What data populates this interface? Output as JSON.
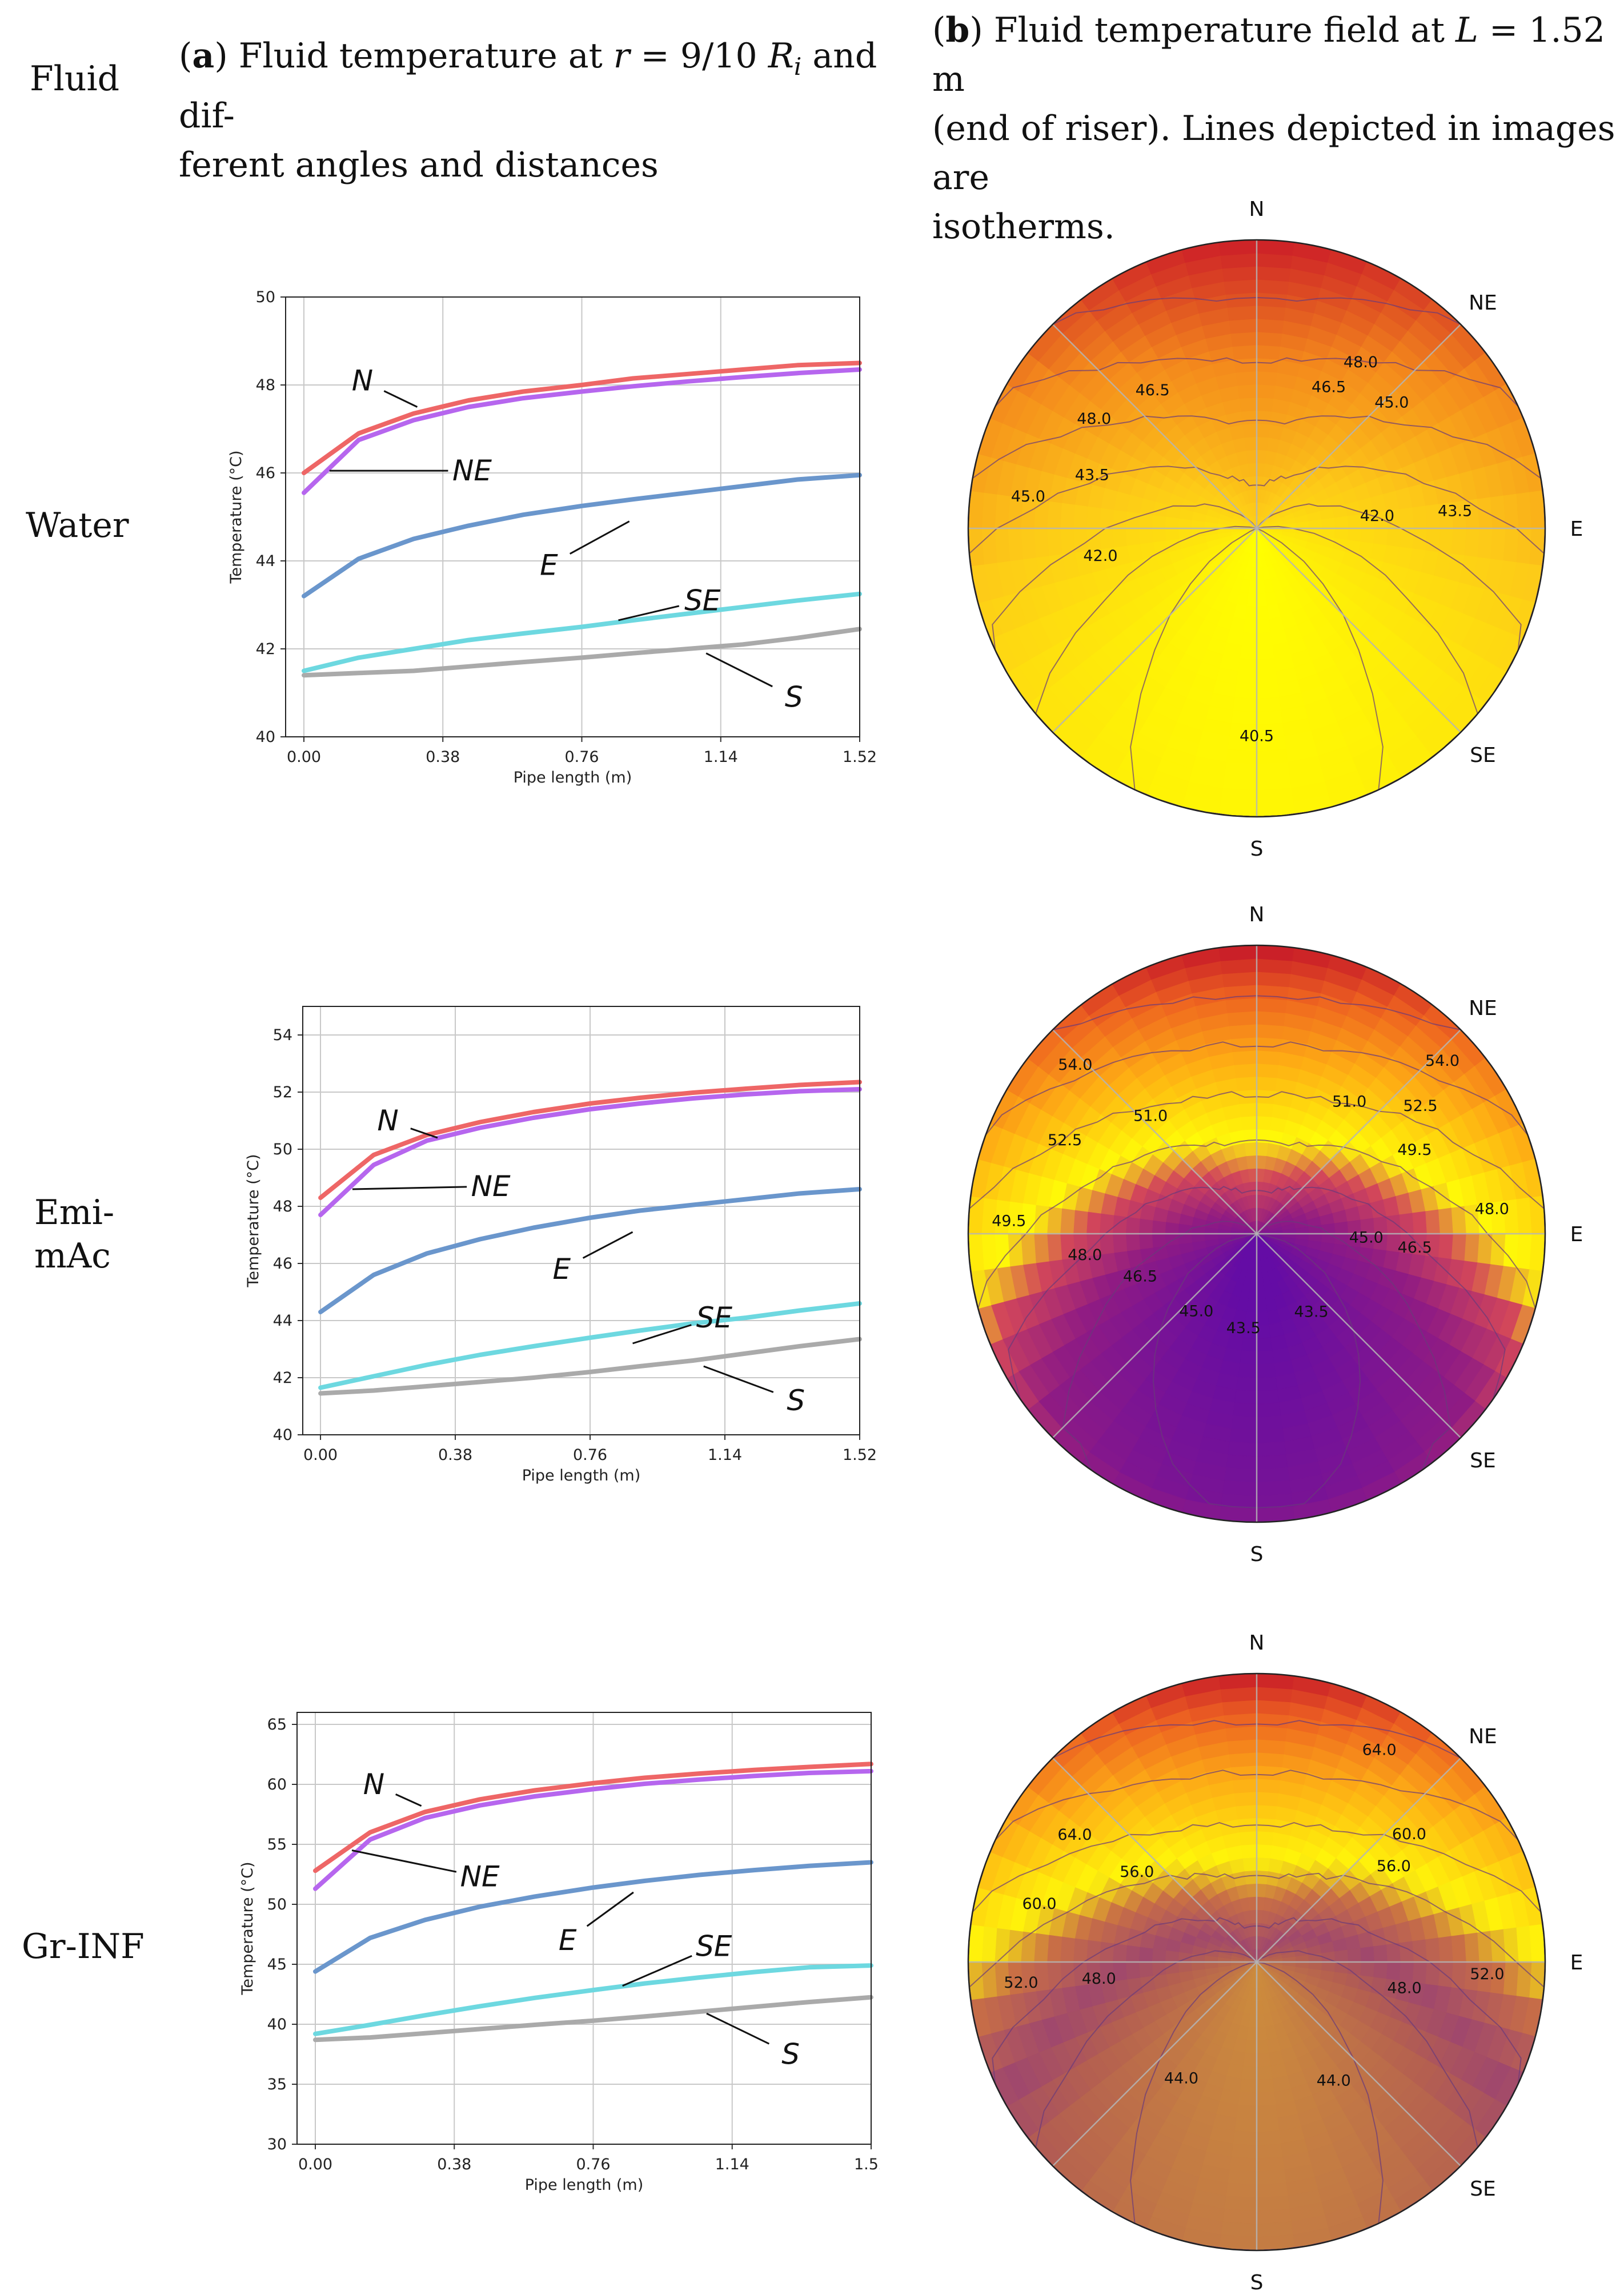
{
  "header": {
    "fluid_label": "Fluid",
    "col_a": {
      "tag": "a",
      "text_1": "Fluid temperature at ",
      "r_var": "r",
      "text_2": " = 9/10 ",
      "R_var": "R",
      "R_sub": "i",
      "text_3": " and dif-",
      "text_line2": "ferent angles and distances"
    },
    "col_b": {
      "tag": "b",
      "text_1": "Fluid temperature field at ",
      "L_var": "L",
      "text_2": " = 1.52 m",
      "text_line2": "(end of riser). Lines depicted in images are",
      "text_line3": "isotherms."
    }
  },
  "rows": [
    {
      "label_lines": [
        "Water"
      ]
    },
    {
      "label_lines": [
        "Emi-",
        "mAc"
      ]
    },
    {
      "label_lines": [
        "Gr-INF"
      ]
    }
  ],
  "chart_data": [
    {
      "type": "line",
      "panel": "water",
      "xlabel": "Pipe length (m)",
      "ylabel": "Temperature (°C)",
      "xlim": [
        -0.05,
        1.52
      ],
      "ylim": [
        40,
        50
      ],
      "x_ticks": [
        0.0,
        0.38,
        0.76,
        1.14,
        1.52
      ],
      "x_tick_labels": [
        "0.00",
        "0.38",
        "0.76",
        "1.14",
        "1.52"
      ],
      "y_ticks": [
        40,
        42,
        44,
        46,
        48,
        50
      ],
      "grid": true,
      "x": [
        0.0,
        0.15,
        0.3,
        0.45,
        0.6,
        0.76,
        0.9,
        1.05,
        1.2,
        1.35,
        1.52
      ],
      "series": [
        {
          "name": "N",
          "color": "#ee6666",
          "values": [
            46.0,
            46.9,
            47.35,
            47.65,
            47.85,
            48.0,
            48.15,
            48.25,
            48.35,
            48.45,
            48.5
          ]
        },
        {
          "name": "NE",
          "color": "#b666ee",
          "values": [
            45.55,
            46.75,
            47.2,
            47.5,
            47.7,
            47.85,
            47.97,
            48.08,
            48.18,
            48.27,
            48.35
          ]
        },
        {
          "name": "E",
          "color": "#6a96cc",
          "values": [
            43.2,
            44.05,
            44.5,
            44.8,
            45.05,
            45.25,
            45.4,
            45.55,
            45.7,
            45.85,
            45.95
          ]
        },
        {
          "name": "SE",
          "color": "#6dd8e0",
          "values": [
            41.5,
            41.8,
            42.0,
            42.2,
            42.35,
            42.5,
            42.65,
            42.8,
            42.95,
            43.1,
            43.25
          ]
        },
        {
          "name": "S",
          "color": "#aaaaaa",
          "values": [
            41.4,
            41.45,
            41.5,
            41.6,
            41.7,
            41.8,
            41.9,
            42.0,
            42.1,
            42.25,
            42.45
          ]
        }
      ],
      "annotations": [
        {
          "text": "N",
          "x": 0.16,
          "y": 48.1,
          "tx": 0.31,
          "ty": 47.5
        },
        {
          "text": "NE",
          "x": 0.46,
          "y": 46.05,
          "tx": 0.07,
          "ty": 46.05
        },
        {
          "text": "E",
          "x": 0.67,
          "y": 43.9,
          "tx": 0.89,
          "ty": 44.9
        },
        {
          "text": "SE",
          "x": 1.09,
          "y": 43.1,
          "tx": 0.86,
          "ty": 42.65
        },
        {
          "text": "S",
          "x": 1.34,
          "y": 40.9,
          "tx": 1.1,
          "ty": 41.9
        }
      ]
    },
    {
      "type": "line",
      "panel": "emimac",
      "xlabel": "Pipe length (m)",
      "ylabel": "Temperature (°C)",
      "xlim": [
        -0.05,
        1.52
      ],
      "ylim": [
        40,
        55
      ],
      "x_ticks": [
        0.0,
        0.38,
        0.76,
        1.14,
        1.52
      ],
      "x_tick_labels": [
        "0.00",
        "0.38",
        "0.76",
        "1.14",
        "1.52"
      ],
      "y_ticks": [
        40,
        42,
        44,
        46,
        48,
        50,
        52,
        54
      ],
      "grid": true,
      "x": [
        0.0,
        0.15,
        0.3,
        0.45,
        0.6,
        0.76,
        0.9,
        1.05,
        1.2,
        1.35,
        1.52
      ],
      "series": [
        {
          "name": "N",
          "color": "#ee6666",
          "values": [
            48.3,
            49.8,
            50.5,
            50.95,
            51.3,
            51.6,
            51.8,
            51.98,
            52.12,
            52.25,
            52.35
          ]
        },
        {
          "name": "NE",
          "color": "#b666ee",
          "values": [
            47.7,
            49.45,
            50.3,
            50.75,
            51.1,
            51.4,
            51.6,
            51.78,
            51.92,
            52.03,
            52.1
          ]
        },
        {
          "name": "E",
          "color": "#6a96cc",
          "values": [
            44.3,
            45.6,
            46.35,
            46.85,
            47.25,
            47.6,
            47.85,
            48.05,
            48.25,
            48.45,
            48.6
          ]
        },
        {
          "name": "SE",
          "color": "#6dd8e0",
          "values": [
            41.65,
            42.05,
            42.45,
            42.8,
            43.1,
            43.4,
            43.65,
            43.9,
            44.1,
            44.35,
            44.6
          ]
        },
        {
          "name": "S",
          "color": "#aaaaaa",
          "values": [
            41.45,
            41.55,
            41.7,
            41.85,
            42.0,
            42.2,
            42.4,
            42.6,
            42.85,
            43.1,
            43.35
          ]
        }
      ],
      "annotations": [
        {
          "text": "N",
          "x": 0.19,
          "y": 51.0,
          "tx": 0.33,
          "ty": 50.4
        },
        {
          "text": "NE",
          "x": 0.48,
          "y": 48.7,
          "tx": 0.09,
          "ty": 48.6
        },
        {
          "text": "E",
          "x": 0.68,
          "y": 45.8,
          "tx": 0.88,
          "ty": 47.1
        },
        {
          "text": "SE",
          "x": 1.11,
          "y": 44.1,
          "tx": 0.88,
          "ty": 43.2
        },
        {
          "text": "S",
          "x": 1.34,
          "y": 41.2,
          "tx": 1.08,
          "ty": 42.4
        }
      ]
    },
    {
      "type": "line",
      "panel": "grinf",
      "xlabel": "Pipe length (m)",
      "ylabel": "Temperature (°C)",
      "xlim": [
        -0.05,
        1.52
      ],
      "ylim": [
        30,
        66
      ],
      "x_ticks": [
        0.0,
        0.38,
        0.76,
        1.14,
        1.52
      ],
      "x_tick_labels": [
        "0.00",
        "0.38",
        "0.76",
        "1.14",
        "1.52"
      ],
      "y_ticks": [
        30,
        35,
        40,
        45,
        50,
        55,
        60,
        65
      ],
      "grid": true,
      "x": [
        0.0,
        0.15,
        0.3,
        0.45,
        0.6,
        0.76,
        0.9,
        1.05,
        1.2,
        1.35,
        1.52
      ],
      "series": [
        {
          "name": "N",
          "color": "#ee6666",
          "values": [
            52.8,
            56.0,
            57.7,
            58.75,
            59.5,
            60.1,
            60.55,
            60.9,
            61.2,
            61.45,
            61.7
          ]
        },
        {
          "name": "NE",
          "color": "#b666ee",
          "values": [
            51.3,
            55.4,
            57.2,
            58.25,
            59.0,
            59.6,
            60.05,
            60.4,
            60.7,
            60.95,
            61.1
          ]
        },
        {
          "name": "E",
          "color": "#6a96cc",
          "values": [
            44.4,
            47.2,
            48.7,
            49.8,
            50.65,
            51.4,
            51.95,
            52.45,
            52.85,
            53.2,
            53.5
          ]
        },
        {
          "name": "SE",
          "color": "#6dd8e0",
          "values": [
            39.2,
            39.95,
            40.75,
            41.5,
            42.2,
            42.85,
            43.4,
            43.9,
            44.35,
            44.75,
            44.9
          ]
        },
        {
          "name": "S",
          "color": "#aaaaaa",
          "values": [
            38.7,
            38.9,
            39.25,
            39.6,
            39.95,
            40.3,
            40.65,
            41.05,
            41.45,
            41.85,
            42.25
          ]
        }
      ],
      "annotations": [
        {
          "text": "N",
          "x": 0.16,
          "y": 60.0,
          "tx": 0.29,
          "ty": 58.2
        },
        {
          "text": "NE",
          "x": 0.45,
          "y": 52.3,
          "tx": 0.1,
          "ty": 54.5
        },
        {
          "text": "E",
          "x": 0.69,
          "y": 47.0,
          "tx": 0.87,
          "ty": 51.0
        },
        {
          "text": "SE",
          "x": 1.09,
          "y": 46.5,
          "tx": 0.84,
          "ty": 43.2
        },
        {
          "text": "S",
          "x": 1.3,
          "y": 37.5,
          "tx": 1.07,
          "ty": 40.9
        }
      ]
    },
    {
      "type": "heatmap",
      "panel": "water",
      "chart_kind": "polar-contour",
      "direction_labels": [
        "N",
        "NE",
        "E",
        "SE",
        "S"
      ],
      "colormap": "autumn",
      "value_range": [
        40.5,
        49.5
      ],
      "contour_labels": [
        {
          "text": "48.0",
          "angle_deg": -56,
          "r_frac": 0.68
        },
        {
          "text": "46.5",
          "angle_deg": -37,
          "r_frac": 0.6
        },
        {
          "text": "48.0",
          "angle_deg": 32,
          "r_frac": 0.68
        },
        {
          "text": "46.5",
          "angle_deg": 27,
          "r_frac": 0.55
        },
        {
          "text": "45.0",
          "angle_deg": -82,
          "r_frac": 0.8
        },
        {
          "text": "43.5",
          "angle_deg": -72,
          "r_frac": 0.6
        },
        {
          "text": "42.0",
          "angle_deg": -100,
          "r_frac": 0.55
        },
        {
          "text": "45.0",
          "angle_deg": 47,
          "r_frac": 0.64
        },
        {
          "text": "42.0",
          "angle_deg": 84,
          "r_frac": 0.42
        },
        {
          "text": "43.5",
          "angle_deg": 85,
          "r_frac": 0.69
        },
        {
          "text": "40.5",
          "angle_deg": 180,
          "r_frac": 0.72
        }
      ]
    },
    {
      "type": "heatmap",
      "panel": "emimac",
      "chart_kind": "polar-contour",
      "direction_labels": [
        "N",
        "NE",
        "E",
        "SE",
        "S"
      ],
      "colormap": "plasma-autumn",
      "value_range": [
        42.0,
        55.0
      ],
      "contour_labels": [
        {
          "text": "54.0",
          "angle_deg": -47,
          "r_frac": 0.86
        },
        {
          "text": "54.0",
          "angle_deg": 47,
          "r_frac": 0.88
        },
        {
          "text": "52.5",
          "angle_deg": -64,
          "r_frac": 0.74
        },
        {
          "text": "51.0",
          "angle_deg": -42,
          "r_frac": 0.55
        },
        {
          "text": "52.5",
          "angle_deg": 52,
          "r_frac": 0.72
        },
        {
          "text": "51.0",
          "angle_deg": 35,
          "r_frac": 0.56
        },
        {
          "text": "49.5",
          "angle_deg": 62,
          "r_frac": 0.62
        },
        {
          "text": "49.5",
          "angle_deg": -87,
          "r_frac": 0.86
        },
        {
          "text": "48.0",
          "angle_deg": -97,
          "r_frac": 0.6
        },
        {
          "text": "46.5",
          "angle_deg": -110,
          "r_frac": 0.43
        },
        {
          "text": "45.0",
          "angle_deg": -142,
          "r_frac": 0.34
        },
        {
          "text": "43.5",
          "angle_deg": -172,
          "r_frac": 0.33
        },
        {
          "text": "45.0",
          "angle_deg": 92,
          "r_frac": 0.38
        },
        {
          "text": "48.0",
          "angle_deg": 84,
          "r_frac": 0.82
        },
        {
          "text": "46.5",
          "angle_deg": 95,
          "r_frac": 0.55
        },
        {
          "text": "43.5",
          "angle_deg": 145,
          "r_frac": 0.33
        }
      ]
    },
    {
      "type": "heatmap",
      "panel": "grinf",
      "chart_kind": "polar-contour",
      "direction_labels": [
        "N",
        "NE",
        "E",
        "SE",
        "S"
      ],
      "colormap": "autumn-muted",
      "value_range": [
        40.0,
        68.0
      ],
      "contour_labels": [
        {
          "text": "64.0",
          "angle_deg": 30,
          "r_frac": 0.85
        },
        {
          "text": "64.0",
          "angle_deg": -55,
          "r_frac": 0.77
        },
        {
          "text": "60.0",
          "angle_deg": 50,
          "r_frac": 0.69
        },
        {
          "text": "56.0",
          "angle_deg": 55,
          "r_frac": 0.58
        },
        {
          "text": "60.0",
          "angle_deg": -75,
          "r_frac": 0.78
        },
        {
          "text": "56.0",
          "angle_deg": -53,
          "r_frac": 0.52
        },
        {
          "text": "52.0",
          "angle_deg": -95,
          "r_frac": 0.82
        },
        {
          "text": "48.0",
          "angle_deg": -96,
          "r_frac": 0.55
        },
        {
          "text": "52.0",
          "angle_deg": 93,
          "r_frac": 0.8
        },
        {
          "text": "48.0",
          "angle_deg": 100,
          "r_frac": 0.52
        },
        {
          "text": "44.0",
          "angle_deg": -147,
          "r_frac": 0.48
        },
        {
          "text": "44.0",
          "angle_deg": 147,
          "r_frac": 0.49
        }
      ]
    }
  ]
}
